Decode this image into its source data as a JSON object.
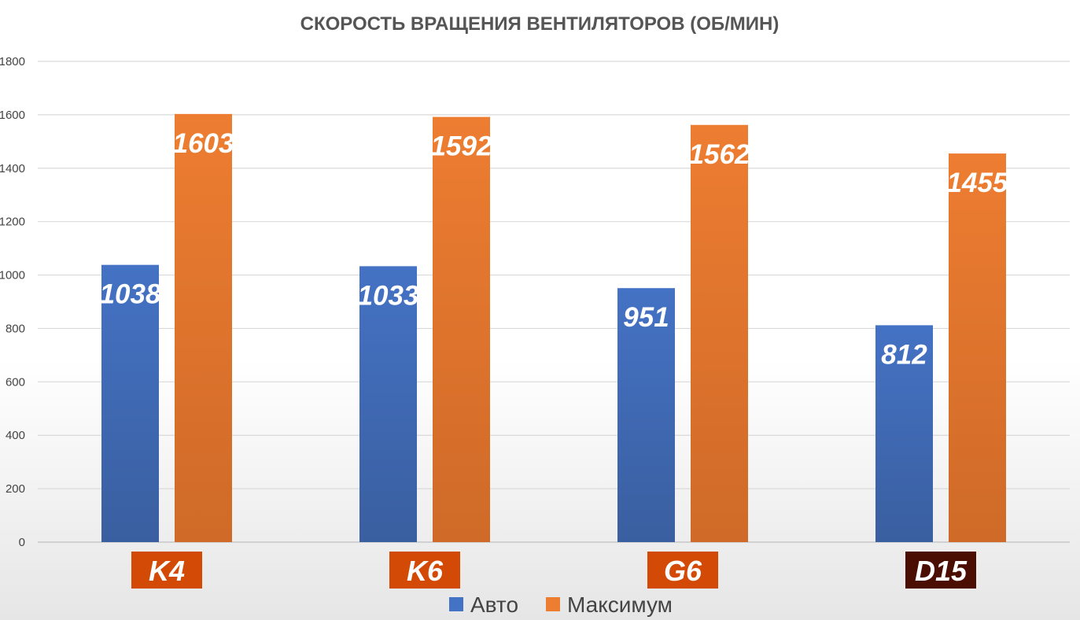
{
  "chart_data": {
    "type": "bar",
    "title": "СКОРОСТЬ ВРАЩЕНИЯ ВЕНТИЛЯТОРОВ (ОБ/МИН)",
    "xlabel": "",
    "ylabel": "",
    "ylim": [
      0,
      1800
    ],
    "yticks": [
      0,
      200,
      400,
      600,
      800,
      1000,
      1200,
      1400,
      1600,
      1800
    ],
    "ytick_labels": [
      "0",
      "200",
      "400",
      "600",
      "800",
      "1000",
      "1200",
      "1400",
      "1600",
      "1800"
    ],
    "grid": true,
    "legend_position": "bottom",
    "categories": [
      "K4",
      "K6",
      "G6",
      "D15"
    ],
    "category_colors": [
      "#d24a06",
      "#d24a06",
      "#d24a06",
      "#4a0e02"
    ],
    "series": [
      {
        "name": "Авто",
        "values": [
          1038,
          1033,
          951,
          812
        ],
        "color": "#4472c4",
        "color_dark": "#3a5fa0"
      },
      {
        "name": "Максимум",
        "values": [
          1603,
          1592,
          1562,
          1455
        ],
        "color": "#ed7d31",
        "color_dark": "#cf6a28"
      }
    ]
  }
}
